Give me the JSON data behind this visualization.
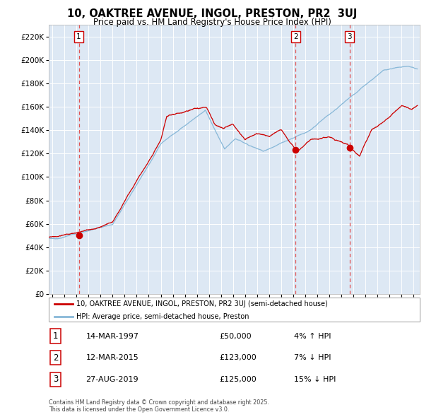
{
  "title": "10, OAKTREE AVENUE, INGOL, PRESTON, PR2  3UJ",
  "subtitle": "Price paid vs. HM Land Registry's House Price Index (HPI)",
  "legend_line1": "10, OAKTREE AVENUE, INGOL, PRESTON, PR2 3UJ (semi-detached house)",
  "legend_line2": "HPI: Average price, semi-detached house, Preston",
  "transactions": [
    {
      "num": 1,
      "date": "14-MAR-1997",
      "price": "£50,000",
      "hpi_diff": "4% ↑ HPI",
      "date_x": 1997.2,
      "price_y": 50000
    },
    {
      "num": 2,
      "date": "12-MAR-2015",
      "price": "£123,000",
      "hpi_diff": "7% ↓ HPI",
      "date_x": 2015.2,
      "price_y": 123000
    },
    {
      "num": 3,
      "date": "27-AUG-2019",
      "price": "£125,000",
      "hpi_diff": "15% ↓ HPI",
      "date_x": 2019.67,
      "price_y": 125000
    }
  ],
  "red_line_color": "#cc0000",
  "blue_line_color": "#88b8d8",
  "dashed_line_color": "#e05555",
  "plot_bg_color": "#dde8f4",
  "grid_color": "#ffffff",
  "title_fontsize": 10.5,
  "subtitle_fontsize": 8.5,
  "xmin": 1994.7,
  "xmax": 2025.5,
  "ymin": 0,
  "ymax": 230000,
  "footnote": "Contains HM Land Registry data © Crown copyright and database right 2025.\nThis data is licensed under the Open Government Licence v3.0."
}
